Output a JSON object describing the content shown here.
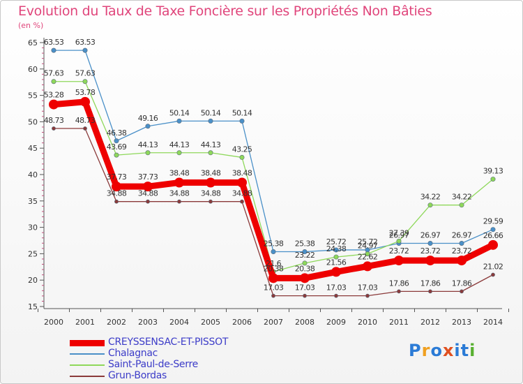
{
  "chart_data": {
    "type": "line",
    "title": "Evolution du Taux de Taxe Foncière sur les Propriétés Non Bâties",
    "subtitle": "(en %)",
    "xlabel": "",
    "ylabel": "",
    "ylim": [
      15,
      65
    ],
    "yticks": [
      "15",
      "20",
      "25",
      "30",
      "35",
      "40",
      "45",
      "50",
      "55",
      "60",
      "65"
    ],
    "categories": [
      "2000",
      "2001",
      "2002",
      "2003",
      "2004",
      "2005",
      "2006",
      "2007",
      "2008",
      "2009",
      "2010",
      "2011",
      "2012",
      "2013",
      "2014"
    ],
    "series": [
      {
        "name": "Chalagnac",
        "color": "#4a90c8",
        "values": [
          63.53,
          63.53,
          46.38,
          49.16,
          50.14,
          50.14,
          50.14,
          25.38,
          25.38,
          25.72,
          25.72,
          26.97,
          26.97,
          26.97,
          29.59
        ],
        "labels": [
          "63.53",
          "63.53",
          "46.38",
          "49.16",
          "50.14",
          "50.14",
          "50.14",
          "25.38",
          "25.38",
          "25.72",
          "25.72",
          "26.97",
          "26.97",
          "26.97",
          "29.59"
        ]
      },
      {
        "name": "Saint-Paul-de-Serre",
        "color": "#8ed85a",
        "values": [
          57.63,
          57.63,
          43.69,
          44.13,
          44.13,
          44.13,
          43.25,
          21.6,
          23.22,
          24.38,
          24.97,
          27.39,
          34.22,
          34.22,
          39.13
        ],
        "labels": [
          "57.63",
          "57.63",
          "43.69",
          "44.13",
          "44.13",
          "44.13",
          "43.25",
          "21.6",
          "23.22",
          "24.38",
          "24.97",
          "27.39",
          "34.22",
          "34.22",
          "39.13"
        ]
      },
      {
        "name": "CREYSSENSAC-ET-PISSOT",
        "color": "#ee0000",
        "values": [
          53.28,
          53.78,
          37.73,
          37.73,
          38.48,
          38.48,
          38.48,
          20.38,
          20.38,
          21.56,
          22.62,
          23.72,
          23.72,
          23.72,
          26.66
        ],
        "labels": [
          "53.28",
          "53.78",
          "37.73",
          "37.73",
          "38.48",
          "38.48",
          "38.48",
          "20.38",
          "20.38",
          "21.56",
          "22.62",
          "23.72",
          "23.72",
          "23.72",
          "26.66"
        ]
      },
      {
        "name": "Grun-Bordas",
        "color": "#8b3a3a",
        "values": [
          48.73,
          48.73,
          34.88,
          34.88,
          34.88,
          34.88,
          34.88,
          17.03,
          17.03,
          17.03,
          17.03,
          17.86,
          17.86,
          17.86,
          21.02
        ],
        "labels": [
          "48.73",
          "48.73",
          "34.88",
          "34.88",
          "34.88",
          "34.88",
          "34.88",
          "17.03",
          "17.03",
          "17.03",
          "17.03",
          "17.86",
          "17.86",
          "17.86",
          "21.02"
        ]
      }
    ],
    "legend": {
      "placement": "bottom-left",
      "order": [
        "CREYSSENSAC-ET-PISSOT",
        "Chalagnac",
        "Saint-Paul-de-Serre",
        "Grun-Bordas"
      ]
    }
  },
  "logo": {
    "text": "Proxiti",
    "colors": [
      "#2b7bd6",
      "#f0a020",
      "#2b7bd6",
      "#e05020",
      "#2b7bd6",
      "#2b7bd6",
      "#58b030"
    ]
  }
}
